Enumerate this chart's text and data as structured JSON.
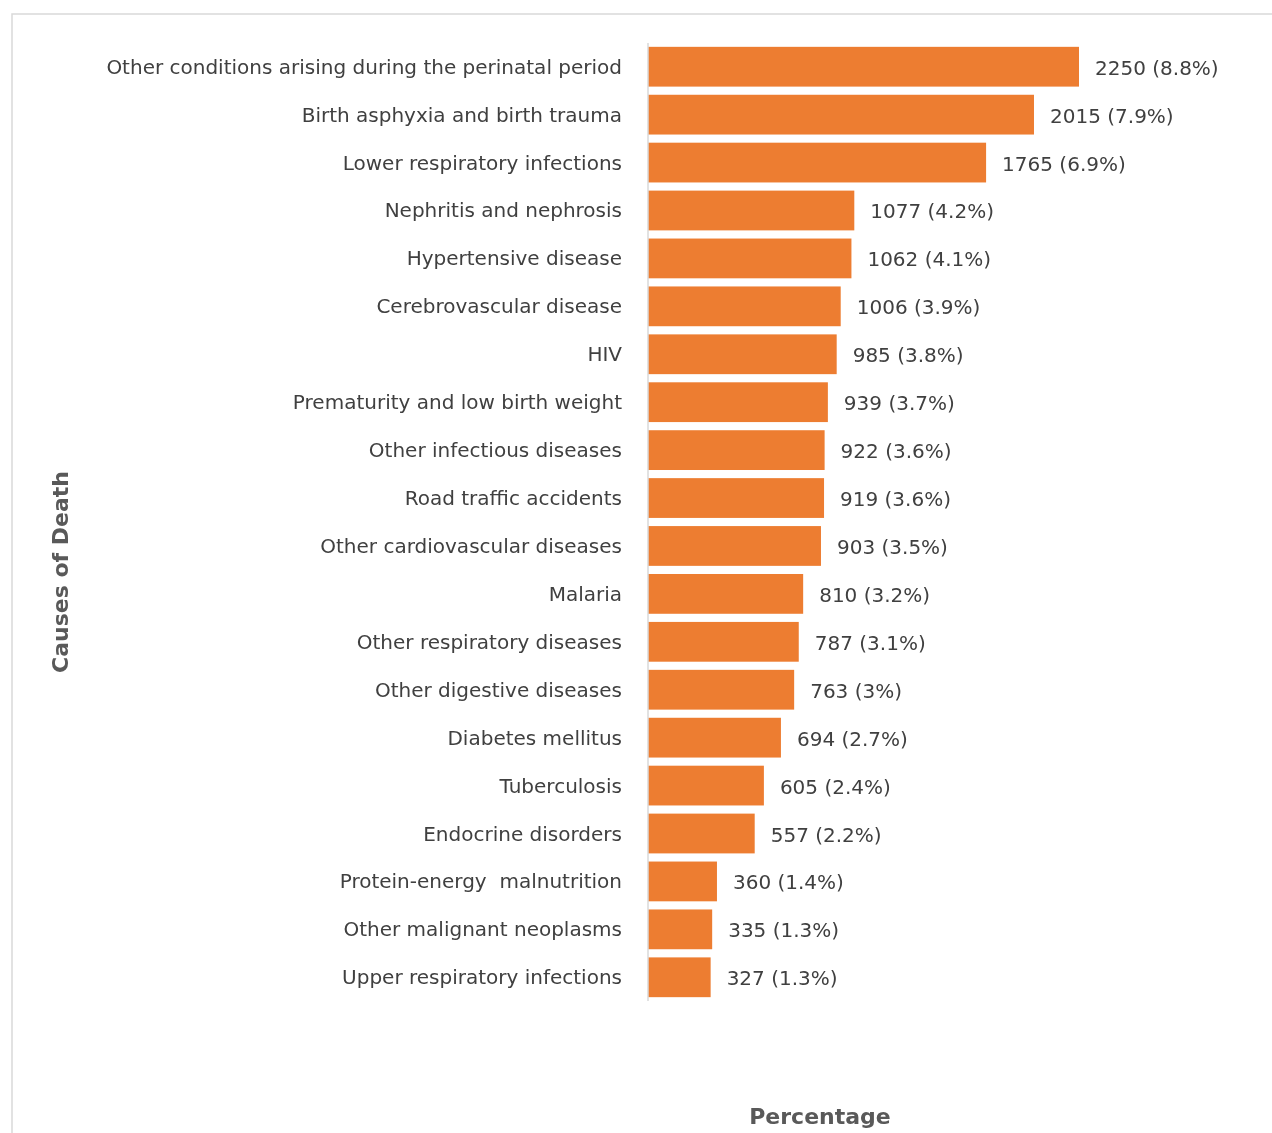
{
  "chart_data": {
    "type": "bar",
    "orientation": "horizontal",
    "xlabel": "Percentage",
    "ylabel": "Causes of Death",
    "categories": [
      "Other conditions arising during the perinatal period",
      "Birth asphyxia and birth trauma",
      "Lower respiratory infections",
      "Nephritis and nephrosis",
      "Hypertensive disease",
      "Cerebrovascular disease",
      "HIV",
      "Prematurity and low birth weight",
      "Other infectious diseases",
      "Road traffic accidents",
      "Other cardiovascular diseases",
      "Malaria",
      "Other respiratory diseases",
      "Other digestive diseases",
      "Diabetes mellitus",
      "Tuberculosis",
      "Endocrine disorders",
      "Protein-energy  malnutrition",
      "Other malignant neoplasms",
      "Upper respiratory infections"
    ],
    "values": [
      2250,
      2015,
      1765,
      1077,
      1062,
      1006,
      985,
      939,
      922,
      919,
      903,
      810,
      787,
      763,
      694,
      605,
      557,
      360,
      335,
      327
    ],
    "value_labels": [
      "2250 (8.8%)",
      "2015 (7.9%)",
      "1765 (6.9%)",
      "1077 (4.2%)",
      "1062 (4.1%)",
      "1006 (3.9%)",
      "985 (3.8%)",
      "939 (3.7%)",
      "922 (3.6%)",
      "919 (3.6%)",
      "903 (3.5%)",
      "810 (3.2%)",
      "787 (3.1%)",
      "763 (3%)",
      "694 (2.7%)",
      "605 (2.4%)",
      "557 (2.2%)",
      "360 (1.4%)",
      "335 (1.3%)",
      "327 (1.3%)"
    ],
    "color": "#ed7d31"
  }
}
